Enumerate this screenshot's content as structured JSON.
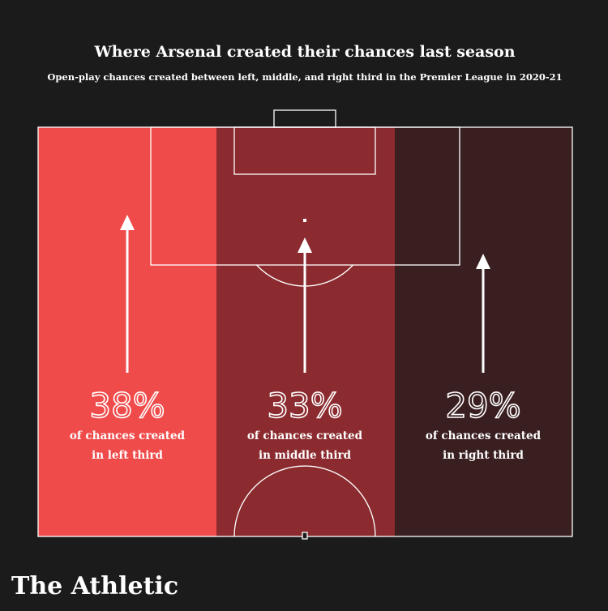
{
  "title": "Where Arsenal created their chances last season",
  "subtitle": "Open-play chances created between left, middle, and right third in the Premier League in 2020-21",
  "zones": [
    {
      "value": "38%",
      "line1": "of chances created",
      "line2": "in left third"
    },
    {
      "value": "33%",
      "line1": "of chances created",
      "line2": "in middle third"
    },
    {
      "value": "29%",
      "line1": "of chances created",
      "line2": "in right third"
    }
  ],
  "brand": "The Athletic"
}
